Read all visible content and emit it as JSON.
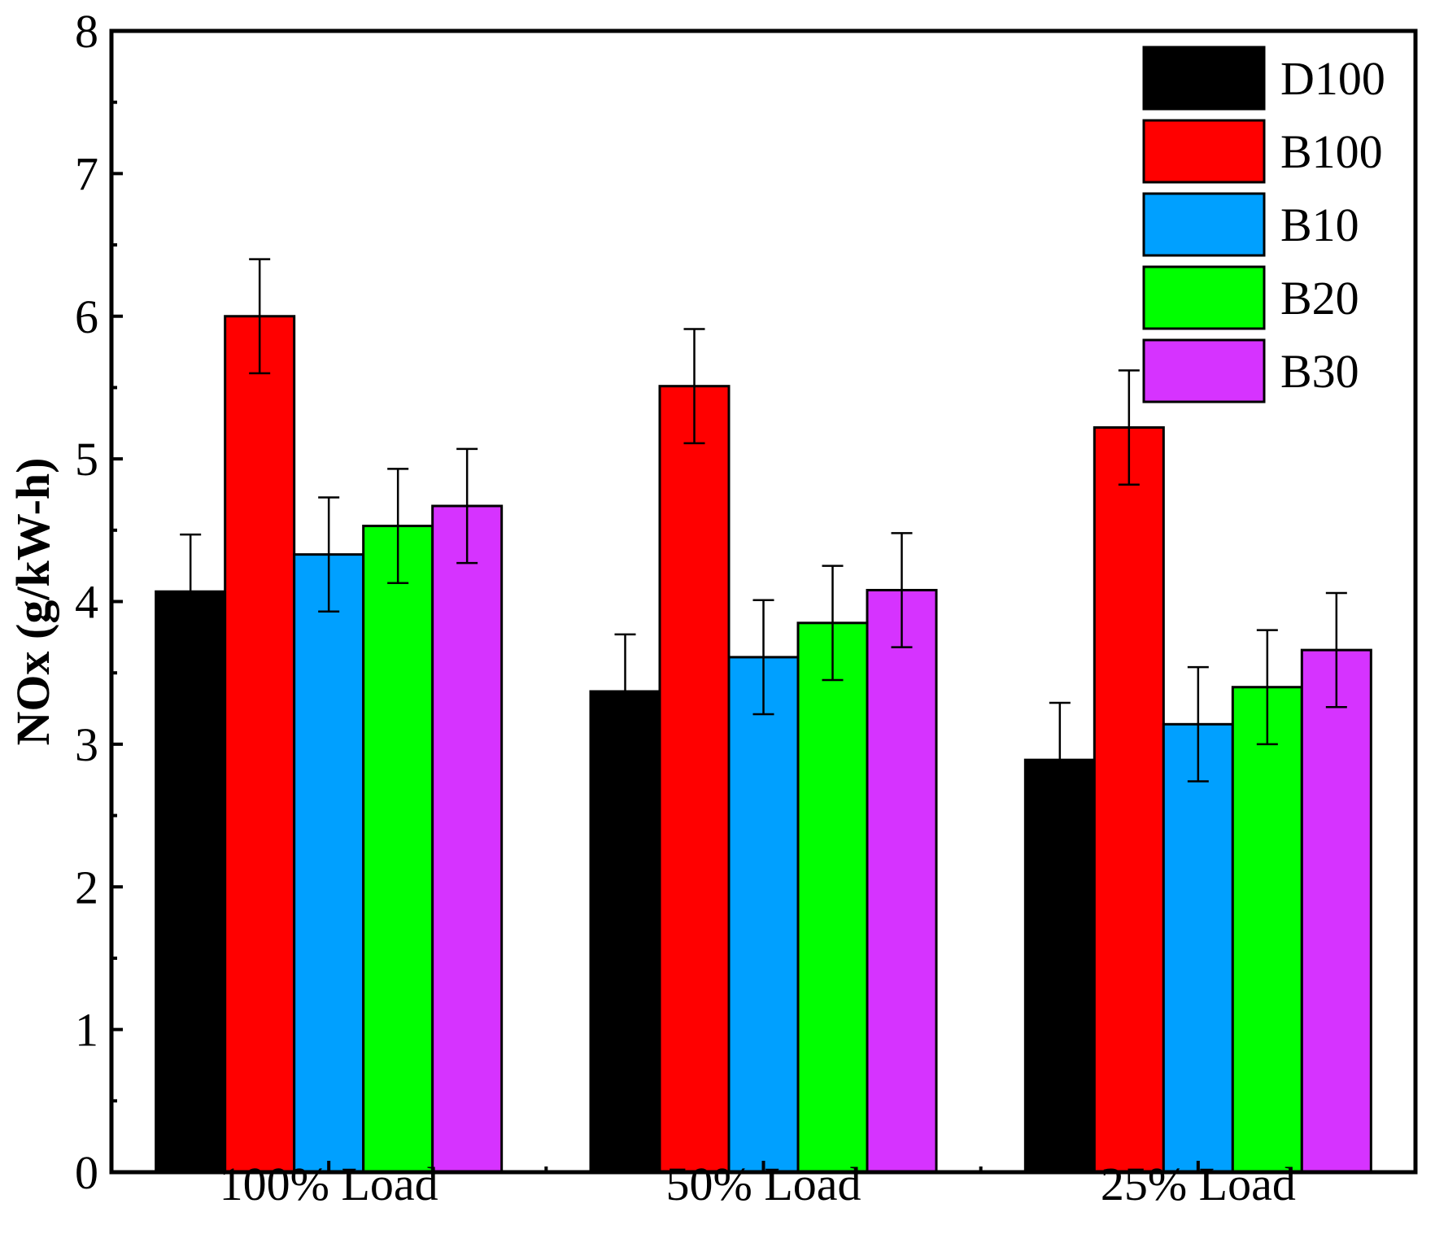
{
  "chart_data": {
    "type": "bar",
    "title": "",
    "xlabel": "",
    "ylabel": "NOx (g/kW-h)",
    "ylim": [
      0,
      8
    ],
    "yticks": [
      0,
      1,
      2,
      3,
      4,
      5,
      6,
      7,
      8
    ],
    "grid": false,
    "legend_position": "top-right",
    "categories": [
      "100% Load",
      "50% Load",
      "25% Load"
    ],
    "series": [
      {
        "name": "D100",
        "color": "#000000",
        "values": [
          4.07,
          3.37,
          2.89
        ],
        "errors": [
          0.4,
          0.4,
          0.4
        ]
      },
      {
        "name": "B100",
        "color": "#ff0000",
        "values": [
          6.0,
          5.51,
          5.22
        ],
        "errors": [
          0.4,
          0.4,
          0.4
        ]
      },
      {
        "name": "B10",
        "color": "#00a0ff",
        "values": [
          4.33,
          3.61,
          3.14
        ],
        "errors": [
          0.4,
          0.4,
          0.4
        ]
      },
      {
        "name": "B20",
        "color": "#00ff00",
        "values": [
          4.53,
          3.85,
          3.4
        ],
        "errors": [
          0.4,
          0.4,
          0.4
        ]
      },
      {
        "name": "B30",
        "color": "#d633ff",
        "values": [
          4.67,
          4.08,
          3.66
        ],
        "errors": [
          0.4,
          0.4,
          0.4
        ]
      }
    ]
  }
}
